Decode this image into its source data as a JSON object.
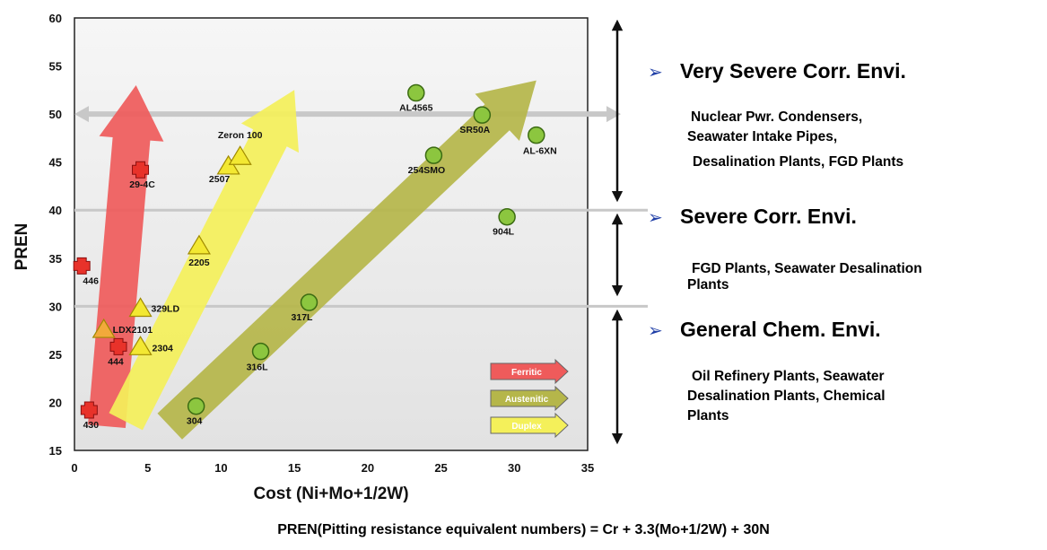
{
  "chart_data": {
    "type": "scatter",
    "xlabel": "Cost (Ni+Mo+1/2W)",
    "ylabel": "PREN",
    "xlim": [
      0,
      35
    ],
    "ylim": [
      15,
      60
    ],
    "xticks": [
      0,
      5,
      10,
      15,
      20,
      25,
      30,
      35
    ],
    "yticks": [
      15,
      20,
      25,
      30,
      35,
      40,
      45,
      50,
      55,
      60
    ],
    "grid": false,
    "series": [
      {
        "name": "Ferritic",
        "color": "#e8322a",
        "marker": "cross",
        "points": [
          {
            "label": "430",
            "x": 1.0,
            "y": 19.2
          },
          {
            "label": "446",
            "x": 0.5,
            "y": 34.2
          },
          {
            "label": "444",
            "x": 3.0,
            "y": 25.8
          },
          {
            "label": "29-4C",
            "x": 4.5,
            "y": 44.2
          }
        ]
      },
      {
        "name": "Austenitic",
        "color": "#8cc63f",
        "marker": "circle",
        "points": [
          {
            "label": "304",
            "x": 8.3,
            "y": 19.6
          },
          {
            "label": "316L",
            "x": 12.7,
            "y": 25.3
          },
          {
            "label": "317L",
            "x": 16.0,
            "y": 30.4
          },
          {
            "label": "AL4565",
            "x": 23.3,
            "y": 52.2
          },
          {
            "label": "254SMO",
            "x": 24.5,
            "y": 45.7
          },
          {
            "label": "SR50A",
            "x": 27.8,
            "y": 49.9
          },
          {
            "label": "AL-6XN",
            "x": 31.5,
            "y": 47.8
          },
          {
            "label": "904L",
            "x": 29.5,
            "y": 39.3
          }
        ]
      },
      {
        "name": "Duplex",
        "color": "#f3e832",
        "marker": "triangle",
        "points": [
          {
            "label": "LDX2101",
            "x": 2.0,
            "y": 27.6
          },
          {
            "label": "2304",
            "x": 4.5,
            "y": 25.8
          },
          {
            "label": "329LD",
            "x": 4.5,
            "y": 29.8
          },
          {
            "label": "2205",
            "x": 8.5,
            "y": 36.3
          },
          {
            "label": "2507",
            "x": 10.5,
            "y": 44.6
          },
          {
            "label": "Zeron 100",
            "x": 11.3,
            "y": 45.6
          }
        ]
      }
    ],
    "reference_lines": [
      {
        "y": 50,
        "style": "double-arrow"
      },
      {
        "y": 40,
        "style": "line"
      },
      {
        "y": 30,
        "style": "line"
      }
    ],
    "trend_arrows": [
      {
        "series": "Ferritic",
        "from": [
          2.2,
          17.5
        ],
        "to": [
          4.2,
          53.0
        ],
        "color": "#ef5b5b"
      },
      {
        "series": "Duplex",
        "from": [
          3.5,
          18.0
        ],
        "to": [
          15.0,
          52.5
        ],
        "color": "#f4f05a"
      },
      {
        "series": "Austenitic",
        "from": [
          6.5,
          17.5
        ],
        "to": [
          31.5,
          53.5
        ],
        "color": "#b5b64a"
      }
    ],
    "legend": {
      "position": "bottom-right",
      "items": [
        "Ferritic",
        "Austenitic",
        "Duplex"
      ]
    }
  },
  "environments": [
    {
      "title": "Very Severe Corr. Envi.",
      "lines": [
        "Nuclear Pwr. Condensers,",
        "Seawater Intake Pipes,",
        "Desalination Plants, FGD Plants"
      ]
    },
    {
      "title": "Severe Corr. Envi.",
      "lines": [
        "FGD Plants, Seawater Desalination",
        "Plants"
      ]
    },
    {
      "title": "General Chem. Envi.",
      "lines": [
        "Oil Refinery Plants, Seawater",
        "Desalination Plants, Chemical",
        "Plants"
      ]
    }
  ],
  "formula": "PREN(Pitting resistance equivalent numbers) = Cr + 3.3(Mo+1/2W) + 30N",
  "colors": {
    "bullet": "#1f3ea6",
    "frame": "#222222",
    "ref_line": "#c8c8c8"
  }
}
